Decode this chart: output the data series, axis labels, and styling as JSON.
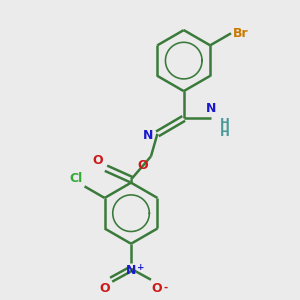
{
  "bg_color": "#ebebeb",
  "bond_color": "#3a7a3a",
  "atom_colors": {
    "Br": "#cc7700",
    "N": "#1a1acc",
    "O": "#cc1a1a",
    "Cl": "#33aa33",
    "C": "#3a7a3a",
    "H": "#4a9999"
  },
  "bond_width": 1.8,
  "font_size": 8.5,
  "fig_size": [
    3.0,
    3.0
  ],
  "dpi": 100,
  "xlim": [
    0,
    9
  ],
  "ylim": [
    0,
    9
  ]
}
